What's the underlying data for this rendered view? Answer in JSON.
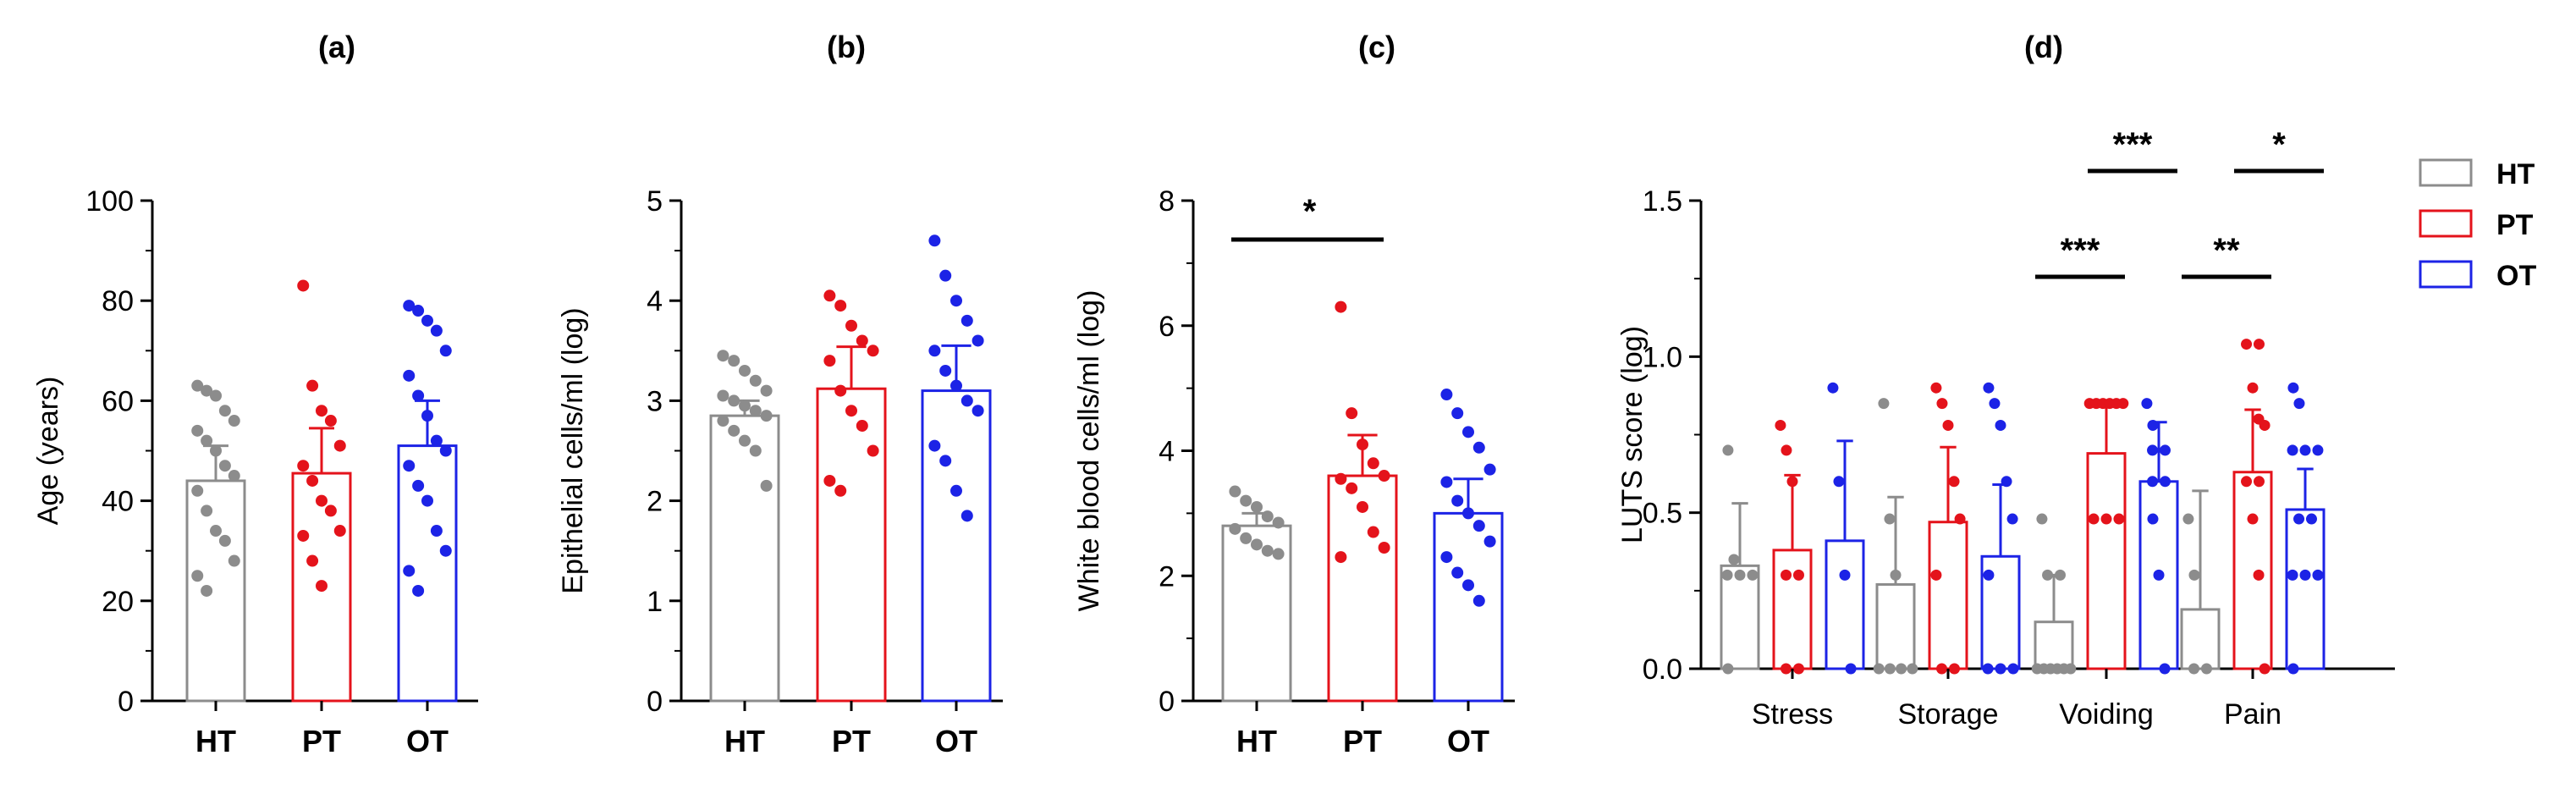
{
  "colors": {
    "HT": "#8c8c8c",
    "PT": "#e4131b",
    "OT": "#1c23e6"
  },
  "legend": [
    {
      "name": "HT",
      "color": "#8c8c8c"
    },
    {
      "name": "PT",
      "color": "#e4131b"
    },
    {
      "name": "OT",
      "color": "#1c23e6"
    }
  ],
  "chart_data": [
    {
      "id": "a",
      "title": "(a)",
      "type": "bar",
      "ylabel": "Age (years)",
      "ylim": [
        0,
        100
      ],
      "yticks": [
        0,
        20,
        40,
        60,
        80,
        100
      ],
      "categories": [
        "HT",
        "PT",
        "OT"
      ],
      "series": [
        {
          "name": "HT",
          "mean": 44,
          "sem": 7,
          "points": [
            63,
            62,
            61,
            58,
            56,
            54,
            52,
            50,
            47,
            45,
            42,
            38,
            34,
            32,
            28,
            25,
            22
          ]
        },
        {
          "name": "PT",
          "mean": 45.5,
          "sem": 9,
          "points": [
            83,
            63,
            58,
            56,
            51,
            47,
            44,
            40,
            38,
            34,
            33,
            28,
            23
          ]
        },
        {
          "name": "OT",
          "mean": 51,
          "sem": 9,
          "points": [
            79,
            78,
            76,
            74,
            70,
            65,
            61,
            57,
            52,
            50,
            47,
            43,
            40,
            34,
            30,
            26,
            22
          ]
        }
      ],
      "significance": []
    },
    {
      "id": "b",
      "title": "(b)",
      "type": "bar",
      "ylabel": "Epithelial cells/ml (log)",
      "ylim": [
        0,
        5
      ],
      "yticks": [
        0,
        1,
        2,
        3,
        4,
        5
      ],
      "categories": [
        "HT",
        "PT",
        "OT"
      ],
      "series": [
        {
          "name": "HT",
          "mean": 2.85,
          "sem": 0.15,
          "points": [
            3.45,
            3.4,
            3.3,
            3.2,
            3.1,
            3.05,
            3.0,
            2.95,
            2.9,
            2.85,
            2.8,
            2.7,
            2.6,
            2.5,
            2.15
          ]
        },
        {
          "name": "PT",
          "mean": 3.12,
          "sem": 0.42,
          "points": [
            4.05,
            3.95,
            3.75,
            3.6,
            3.5,
            3.4,
            3.1,
            2.9,
            2.75,
            2.5,
            2.2,
            2.1
          ]
        },
        {
          "name": "OT",
          "mean": 3.1,
          "sem": 0.45,
          "points": [
            4.6,
            4.25,
            4.0,
            3.8,
            3.6,
            3.5,
            3.3,
            3.15,
            3.0,
            2.9,
            2.55,
            2.4,
            2.1,
            1.85
          ]
        }
      ],
      "significance": []
    },
    {
      "id": "c",
      "title": "(c)",
      "type": "bar",
      "ylabel": "White blood cells/ml (log)",
      "ylim": [
        0,
        8
      ],
      "yticks": [
        0,
        2,
        4,
        6,
        8
      ],
      "categories": [
        "HT",
        "PT",
        "OT"
      ],
      "series": [
        {
          "name": "HT",
          "mean": 2.8,
          "sem": 0.2,
          "points": [
            3.35,
            3.2,
            3.1,
            2.95,
            2.85,
            2.75,
            2.6,
            2.5,
            2.4,
            2.35
          ]
        },
        {
          "name": "PT",
          "mean": 3.6,
          "sem": 0.65,
          "points": [
            6.3,
            4.6,
            4.1,
            3.8,
            3.6,
            3.55,
            3.4,
            3.1,
            2.7,
            2.45,
            2.3
          ]
        },
        {
          "name": "OT",
          "mean": 3.0,
          "sem": 0.55,
          "points": [
            4.9,
            4.6,
            4.3,
            4.05,
            3.7,
            3.5,
            3.2,
            3.0,
            2.8,
            2.55,
            2.3,
            2.05,
            1.85,
            1.6
          ]
        }
      ],
      "significance": [
        {
          "from": 0,
          "to": 1,
          "level": 0,
          "label": "*"
        }
      ]
    },
    {
      "id": "d",
      "title": "(d)",
      "type": "grouped-bar",
      "ylabel": "LUTS score (log)",
      "ylim": [
        0,
        1.5
      ],
      "yticks": [
        0.0,
        0.5,
        1.0,
        1.5
      ],
      "ytick_labels": [
        "0.0",
        "0.5",
        "1.0",
        "1.5"
      ],
      "categories": [
        "Stress",
        "Storage",
        "Voiding",
        "Pain"
      ],
      "series": [
        {
          "name": "HT",
          "means": [
            0.33,
            0.27,
            0.15,
            0.19
          ],
          "sems": [
            0.2,
            0.28,
            0.15,
            0.38
          ],
          "points": [
            [
              0.7,
              0.35,
              0.3,
              0.3,
              0.3,
              0.0
            ],
            [
              0.85,
              0.48,
              0.3,
              0.0,
              0.0,
              0.0,
              0.0
            ],
            [
              0.48,
              0.3,
              0.3,
              0.0,
              0.0,
              0.0,
              0.0,
              0.0,
              0.0
            ],
            [
              0.48,
              0.3,
              0.0,
              0.0
            ]
          ]
        },
        {
          "name": "PT",
          "means": [
            0.38,
            0.47,
            0.69,
            0.63
          ],
          "sems": [
            0.24,
            0.24,
            0.15,
            0.2
          ],
          "points": [
            [
              0.78,
              0.7,
              0.6,
              0.3,
              0.3,
              0.0,
              0.0
            ],
            [
              0.9,
              0.85,
              0.78,
              0.6,
              0.48,
              0.3,
              0.0,
              0.0
            ],
            [
              0.85,
              0.85,
              0.85,
              0.85,
              0.85,
              0.85,
              0.48,
              0.48,
              0.48
            ],
            [
              1.04,
              1.04,
              0.9,
              0.8,
              0.78,
              0.6,
              0.6,
              0.48,
              0.3,
              0.0
            ]
          ]
        },
        {
          "name": "OT",
          "means": [
            0.41,
            0.36,
            0.6,
            0.51
          ],
          "sems": [
            0.32,
            0.23,
            0.19,
            0.13
          ],
          "points": [
            [
              0.9,
              0.6,
              0.3,
              0.0
            ],
            [
              0.9,
              0.85,
              0.78,
              0.6,
              0.48,
              0.3,
              0.0,
              0.0,
              0.0
            ],
            [
              0.85,
              0.78,
              0.7,
              0.7,
              0.6,
              0.6,
              0.48,
              0.3,
              0.0
            ],
            [
              0.9,
              0.85,
              0.7,
              0.7,
              0.7,
              0.48,
              0.48,
              0.3,
              0.3,
              0.3,
              0.0
            ]
          ]
        }
      ],
      "significance": [
        {
          "category": 2,
          "from": 1,
          "to": 2,
          "level": 1,
          "label": "***"
        },
        {
          "category": 2,
          "from": 0,
          "to": 1,
          "level": 0,
          "label": "***"
        },
        {
          "category": 3,
          "from": 1,
          "to": 2,
          "level": 1,
          "label": "*"
        },
        {
          "category": 3,
          "from": 0,
          "to": 1,
          "level": 0,
          "label": "**"
        }
      ]
    }
  ]
}
